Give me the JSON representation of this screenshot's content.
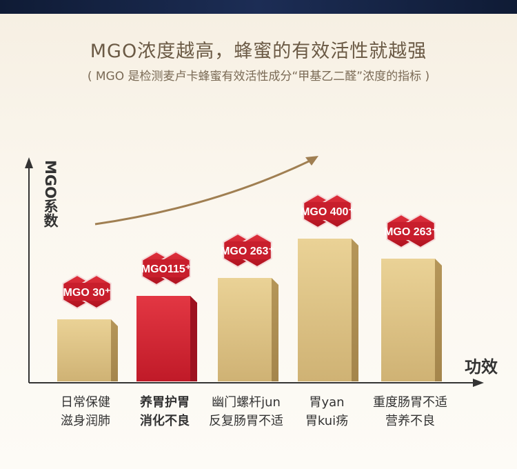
{
  "header": {
    "title": "MGO浓度越高，蜂蜜的有效活性就越强",
    "subtitle": "( MGO 是检测麦卢卡蜂蜜有效活性成分“甲基乙二醛”浓度的指标 )"
  },
  "colors": {
    "gold": "#d9bf7c",
    "red": "#d8222f",
    "arrow": "#9a7b4f",
    "axis": "#333333",
    "badge": "#c81e2c"
  },
  "chart_data": {
    "type": "bar",
    "ylabel": "MGO系数",
    "xlabel": "功效",
    "categories": [
      [
        "日常保健",
        "滋身润肺"
      ],
      [
        "养胃护胃",
        "消化不良"
      ],
      [
        "幽门螺杆jun",
        "反复肠胃不适"
      ],
      [
        "胃yan",
        "胃kui疡"
      ],
      [
        "重度肠胃不适",
        "营养不良"
      ]
    ],
    "values": [
      30,
      115,
      263,
      400,
      263
    ],
    "labels": [
      "MGO 30⁺",
      "MGO115⁺",
      "MGO 263⁺",
      "MGO 400⁺",
      "MGO 263⁺"
    ],
    "highlight_index": 1
  }
}
